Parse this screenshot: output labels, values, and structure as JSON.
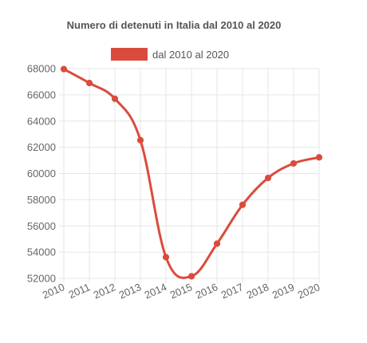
{
  "chart_data": {
    "type": "line",
    "title": "Numero di detenuti in Italia dal 2010 al 2020",
    "xlabel": "",
    "ylabel": "",
    "x": [
      "2010",
      "2011",
      "2012",
      "2013",
      "2014",
      "2015",
      "2016",
      "2017",
      "2018",
      "2019",
      "2020"
    ],
    "series": [
      {
        "name": "dal 2010 al 2020",
        "color": "#d94c3d",
        "values": [
          67960,
          66900,
          65700,
          62540,
          53620,
          52160,
          54650,
          57610,
          59660,
          60770,
          61230
        ]
      }
    ],
    "ylim": [
      52000,
      68000
    ],
    "yticks": [
      "52000",
      "54000",
      "56000",
      "58000",
      "60000",
      "62000",
      "64000",
      "66000",
      "68000"
    ],
    "grid": true,
    "legend": "top"
  }
}
